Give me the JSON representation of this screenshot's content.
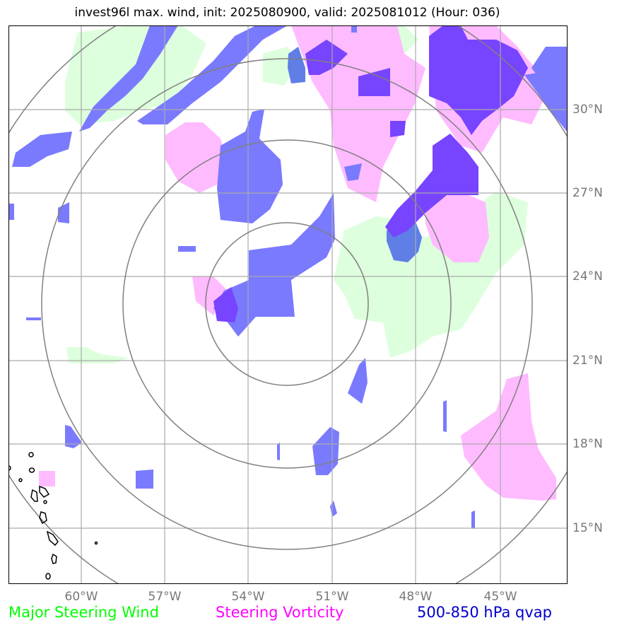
{
  "title": "invest96l max. wind, init: 2025080900, valid: 2025081012 (Hour: 036)",
  "map": {
    "lat_labels": [
      "30°N",
      "27°N",
      "24°N",
      "21°N",
      "18°N",
      "15°N"
    ],
    "lon_labels": [
      "60°W",
      "57°W",
      "54°W",
      "51°W",
      "48°W",
      "45°W"
    ],
    "range_rings": 4
  },
  "legend": [
    {
      "label": "Major Steering Wind",
      "color": "#00ff00"
    },
    {
      "label": "Steering Vorticity",
      "color": "#ff00ff"
    },
    {
      "label": "500-850 hPa qvap",
      "color": "#0000cc"
    }
  ],
  "colors": {
    "steering_wind_fill": "#ddffdd",
    "vorticity_fill": "#ffbbff",
    "qvap_fill": "#7a7aff",
    "qvap_strong_fill": "#7744ff",
    "overlap_fill": "#5f7fe6",
    "grid": "#aaaaaa",
    "ring": "#808080",
    "coast": "#000000"
  }
}
